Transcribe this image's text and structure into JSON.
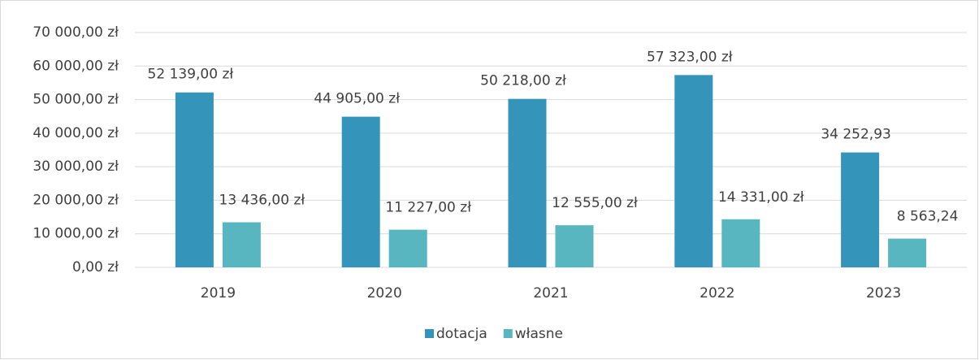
{
  "chart_data": {
    "type": "bar",
    "categories": [
      "2019",
      "2020",
      "2021",
      "2022",
      "2023"
    ],
    "series": [
      {
        "name": "dotacja",
        "color": "#3494ba",
        "values": [
          52139,
          44905,
          50218,
          57323,
          34252.93
        ],
        "value_labels": [
          "52 139,00 zł",
          "44 905,00 zł",
          "50 218,00 zł",
          "57 323,00 zł",
          "34 252,93"
        ]
      },
      {
        "name": "własne",
        "color": "#58b6c0",
        "values": [
          13436,
          11227,
          12555,
          14331,
          8563.24
        ],
        "value_labels": [
          "13 436,00 zł",
          "11 227,00 zł",
          "12 555,00 zł",
          "14 331,00 zł",
          "8 563,24"
        ]
      }
    ],
    "ylim": [
      0,
      70000
    ],
    "yticks": [
      {
        "value": 0,
        "label": "0,00 zł"
      },
      {
        "value": 10000,
        "label": "10 000,00 zł"
      },
      {
        "value": 20000,
        "label": "20 000,00 zł"
      },
      {
        "value": 30000,
        "label": "30 000,00 zł"
      },
      {
        "value": 40000,
        "label": "40 000,00 zł"
      },
      {
        "value": 50000,
        "label": "50 000,00 zł"
      },
      {
        "value": 60000,
        "label": "60 000,00 zł"
      },
      {
        "value": 70000,
        "label": "70 000,00 zł"
      }
    ],
    "grid": true,
    "legend": "bottom"
  }
}
